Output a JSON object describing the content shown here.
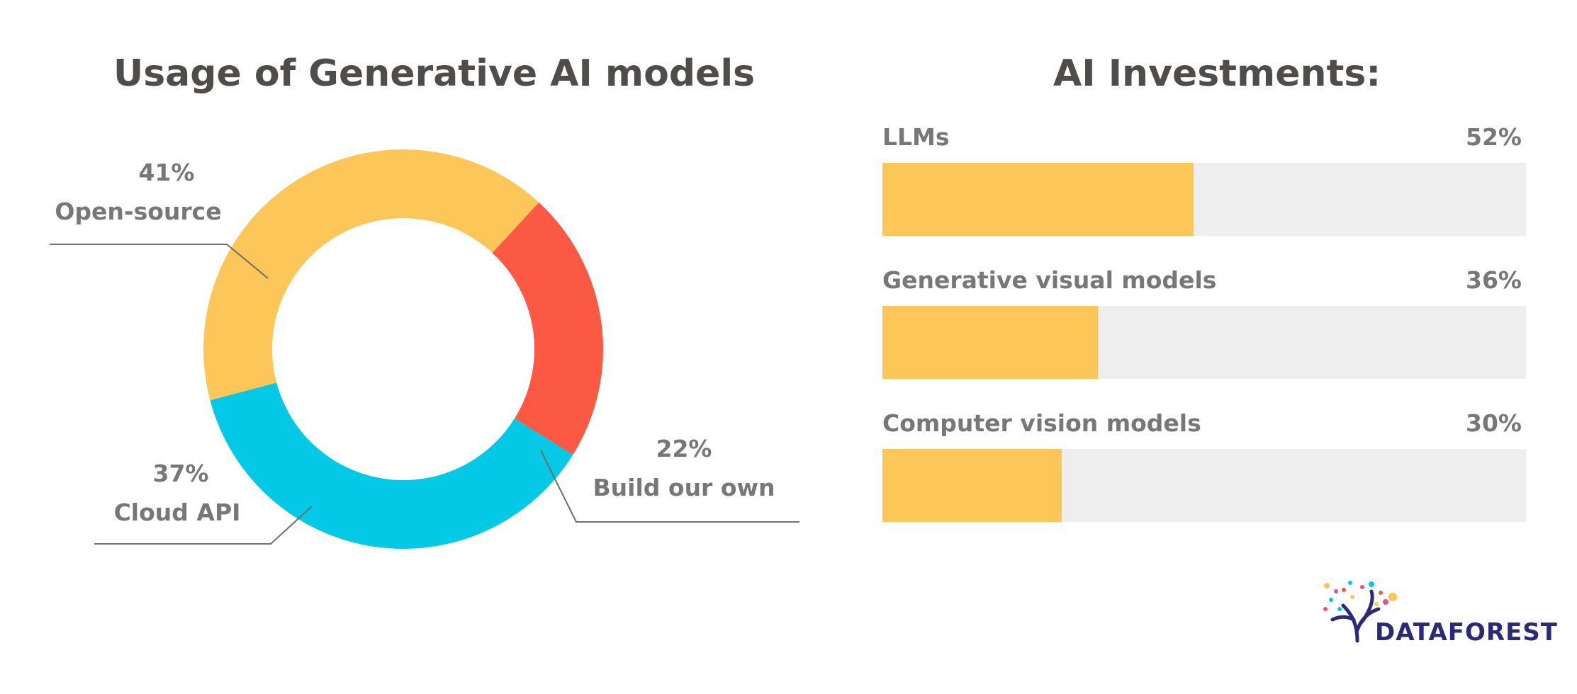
{
  "chart_data": [
    {
      "type": "pie",
      "title": "Usage of Generative AI models",
      "slices": [
        {
          "label": "Open-source",
          "value": 41,
          "display": "41%",
          "color": "#fdc658"
        },
        {
          "label": "Build our own",
          "value": 22,
          "display": "22%",
          "color": "#fc5944"
        },
        {
          "label": "Cloud API",
          "value": 37,
          "display": "37%",
          "color": "#03c9e6"
        }
      ]
    },
    {
      "type": "bar",
      "orientation": "horizontal",
      "title": "AI Investments:",
      "categories": [
        "LLMs",
        "Generative visual models",
        "Computer vision models"
      ],
      "values": [
        52,
        36,
        30
      ],
      "value_labels": [
        "52%",
        "36%",
        "30%"
      ],
      "bar_color": "#fdc658",
      "track_color": "#eeeeee",
      "xlim": [
        0,
        100
      ]
    }
  ],
  "logo": {
    "text": "DATAFOREST"
  }
}
